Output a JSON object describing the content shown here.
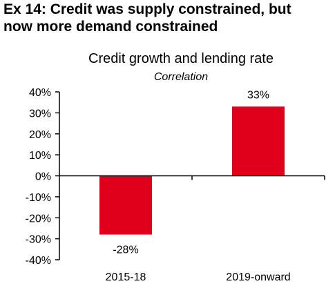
{
  "header": {
    "title_line1": "Ex 14: Credit was supply constrained, but",
    "title_line2": "now more demand constrained"
  },
  "chart_data": {
    "type": "bar",
    "title": "Credit growth and lending rate",
    "subtitle": "Correlation",
    "categories": [
      "2015-18",
      "2019-onward"
    ],
    "values": [
      -28,
      33
    ],
    "data_labels": [
      "-28%",
      "33%"
    ],
    "ylim": [
      -40,
      40
    ],
    "yticks": [
      40,
      30,
      20,
      10,
      0,
      -10,
      -20,
      -30,
      -40
    ],
    "ytick_labels": [
      "40%",
      "30%",
      "20%",
      "10%",
      "0%",
      "-10%",
      "-20%",
      "-30%",
      "-40%"
    ],
    "xlabel": "",
    "ylabel": "",
    "grid": false,
    "legend": "none",
    "colors": {
      "bar": "#e0001b",
      "axis": "#000000"
    }
  }
}
